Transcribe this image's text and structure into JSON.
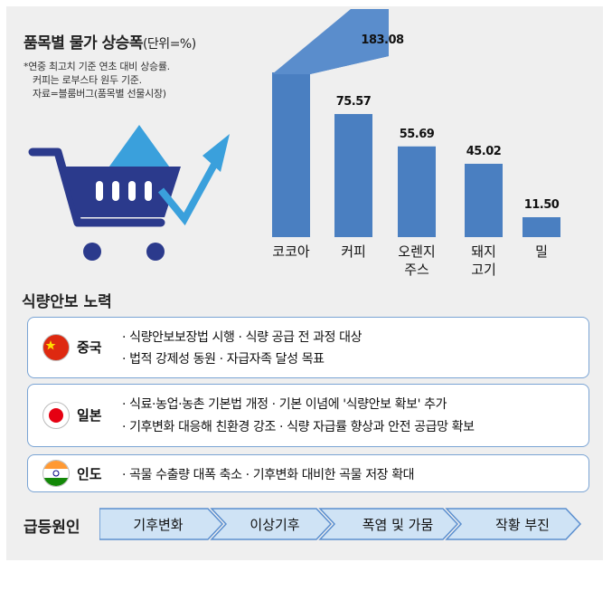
{
  "chart_data": {
    "type": "bar",
    "title": "품목별 물가 상승폭",
    "title_unit": "(단위=%)",
    "notes": [
      "*연중 최고치 기준 연초 대비 상승률.",
      "커피는 로부스타 원두 기준.",
      "자료=블룸버그(품목별 선물시장)"
    ],
    "categories": [
      [
        "코코아"
      ],
      [
        "커피"
      ],
      [
        "오렌지",
        "주스"
      ],
      [
        "돼지",
        "고기"
      ],
      [
        "밀"
      ]
    ],
    "values": [
      183.08,
      75.57,
      55.69,
      45.02,
      11.5
    ],
    "value_labels": [
      "183.08",
      "75.57",
      "55.69",
      "45.02",
      "11.50"
    ],
    "bar_color": "#4a7fc1",
    "axis_break_on_first_bar": true
  },
  "illustration": {
    "icon": "shopping-cart-with-rising-arrow-icon",
    "cart_color": "#2b3a8c",
    "arrow_color": "#3aa0dc"
  },
  "food_security": {
    "title": "식량안보 노력",
    "countries": [
      {
        "name": "중국",
        "flag": "china-flag-icon",
        "lines": [
          "· 식량안보보장법 시행 · 식량 공급 전 과정 대상",
          "· 법적 강제성 동원 · 자급자족 달성 목표"
        ]
      },
      {
        "name": "일본",
        "flag": "japan-flag-icon",
        "lines": [
          "· 식료·농업·농촌 기본법 개정 · 기본 이념에 '식량안보 확보' 추가",
          "· 기후변화 대응해 친환경 강조 · 식량 자급률 향상과 안전 공급망 확보"
        ]
      },
      {
        "name": "인도",
        "flag": "india-flag-icon",
        "lines": [
          "· 곡물 수출량 대폭 축소 · 기후변화 대비한 곡물 저장 확대"
        ]
      }
    ]
  },
  "causes": {
    "label": "급등원인",
    "steps": [
      "기후변화",
      "이상기후",
      "폭염 및 가뭄",
      "작황 부진"
    ],
    "chevron_color": "#cfe3f5",
    "chevron_border": "#5b8fcf"
  }
}
